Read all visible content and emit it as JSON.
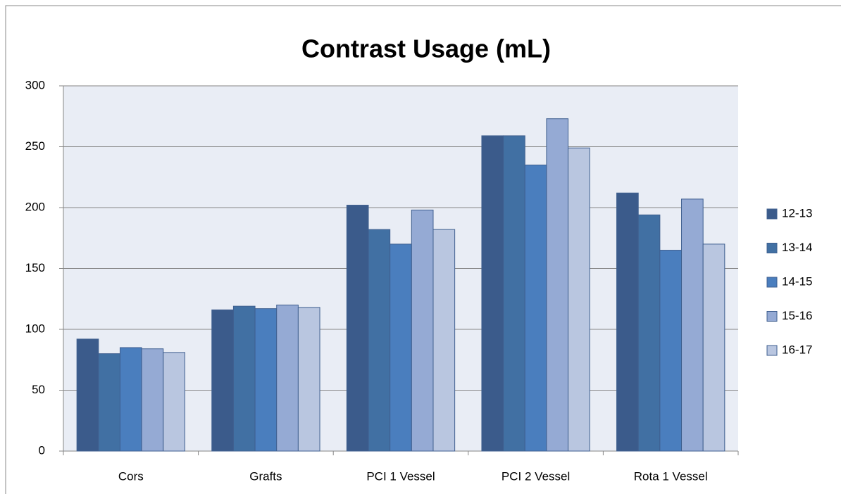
{
  "chart_data": {
    "type": "bar",
    "title": "Contrast Usage (mL)",
    "categories": [
      "Cors",
      "Grafts",
      "PCI 1 Vessel",
      "PCI 2 Vessel",
      "Rota 1 Vessel"
    ],
    "series": [
      {
        "name": "12-13",
        "color": "#3b5b8b",
        "values": [
          92,
          116,
          202,
          259,
          212
        ]
      },
      {
        "name": "13-14",
        "color": "#4170a3",
        "values": [
          80,
          119,
          182,
          259,
          194
        ]
      },
      {
        "name": "14-15",
        "color": "#4a7ebe",
        "values": [
          85,
          117,
          170,
          235,
          165
        ]
      },
      {
        "name": "15-16",
        "color": "#95aad4",
        "values": [
          84,
          120,
          198,
          273,
          207
        ]
      },
      {
        "name": "16-17",
        "color": "#b9c6e0",
        "values": [
          81,
          118,
          182,
          249,
          170
        ]
      }
    ],
    "ylim": [
      0,
      300
    ],
    "yticks": [
      0,
      50,
      100,
      150,
      200,
      250,
      300
    ],
    "grid": true,
    "legend": "right"
  }
}
